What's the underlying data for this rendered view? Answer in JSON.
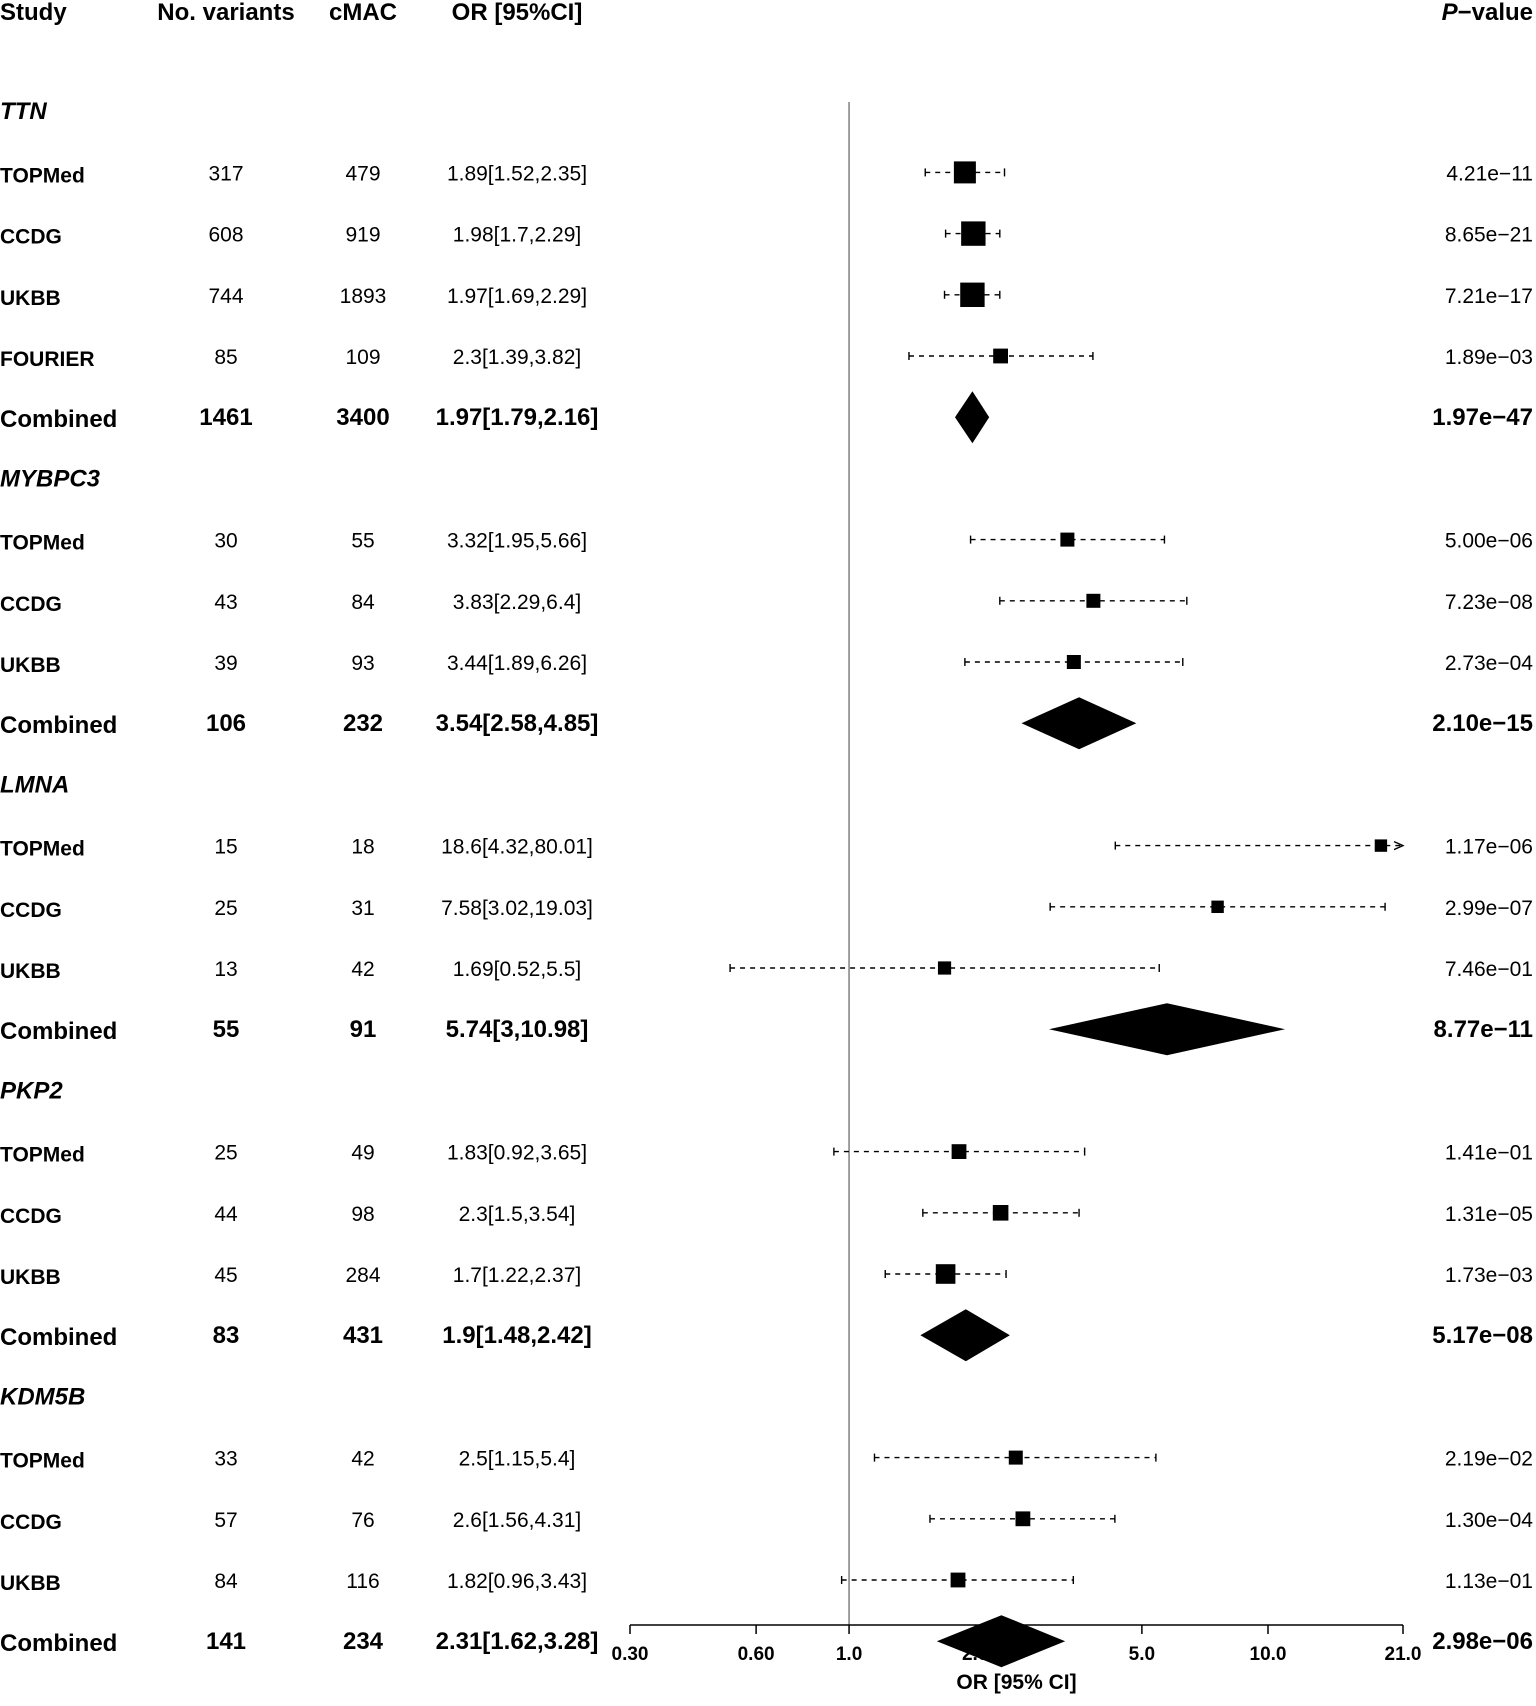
{
  "headers": {
    "study": "Study",
    "variants": "No. variants",
    "cmac": "cMAC",
    "or": "OR [95%CI]",
    "p_italic": "P",
    "p_rest": "−value"
  },
  "combined_label": "Combined",
  "colors": {
    "foreground": "#000000",
    "reference_line": "#808080",
    "background": "#ffffff"
  },
  "chart_data": {
    "type": "forest",
    "x_scale": "log",
    "x_label": "OR [95% CI]",
    "x_ticks": [
      {
        "value": 0.3,
        "label": "0.30"
      },
      {
        "value": 0.6,
        "label": "0.60"
      },
      {
        "value": 1.0,
        "label": "1.0"
      },
      {
        "value": 2.0,
        "label": "2.0"
      },
      {
        "value": 5.0,
        "label": "5.0"
      },
      {
        "value": 10.0,
        "label": "10.0"
      },
      {
        "value": 21.0,
        "label": "21.0"
      }
    ],
    "xlim": [
      0.3,
      21.0
    ],
    "reference_line": 1.0,
    "genes": [
      {
        "name": "TTN",
        "studies": [
          {
            "study": "TOPMed",
            "variants": "317",
            "cmac": "479",
            "or_text": "1.89[1.52,2.35]",
            "or": 1.89,
            "lo": 1.52,
            "hi": 2.35,
            "p": "4.21e−11",
            "weight": 1.0
          },
          {
            "study": "CCDG",
            "variants": "608",
            "cmac": "919",
            "or_text": "1.98[1.7,2.29]",
            "or": 1.98,
            "lo": 1.7,
            "hi": 2.29,
            "p": "8.65e−21",
            "weight": 1.15
          },
          {
            "study": "UKBB",
            "variants": "744",
            "cmac": "1893",
            "or_text": "1.97[1.69,2.29]",
            "or": 1.97,
            "lo": 1.69,
            "hi": 2.29,
            "p": "7.21e−17",
            "weight": 1.15
          },
          {
            "study": "FOURIER",
            "variants": "85",
            "cmac": "109",
            "or_text": "2.3[1.39,3.82]",
            "or": 2.3,
            "lo": 1.39,
            "hi": 3.82,
            "p": "1.89e−03",
            "weight": 0.55
          }
        ],
        "combined": {
          "variants": "1461",
          "cmac": "3400",
          "or_text": "1.97[1.79,2.16]",
          "or": 1.97,
          "lo": 1.79,
          "hi": 2.16,
          "p": "1.97e−47"
        }
      },
      {
        "name": "MYBPC3",
        "studies": [
          {
            "study": "TOPMed",
            "variants": "30",
            "cmac": "55",
            "or_text": "3.32[1.95,5.66]",
            "or": 3.32,
            "lo": 1.95,
            "hi": 5.66,
            "p": "5.00e−06",
            "weight": 0.5
          },
          {
            "study": "CCDG",
            "variants": "43",
            "cmac": "84",
            "or_text": "3.83[2.29,6.4]",
            "or": 3.83,
            "lo": 2.29,
            "hi": 6.4,
            "p": "7.23e−08",
            "weight": 0.5
          },
          {
            "study": "UKBB",
            "variants": "39",
            "cmac": "93",
            "or_text": "3.44[1.89,6.26]",
            "or": 3.44,
            "lo": 1.89,
            "hi": 6.26,
            "p": "2.73e−04",
            "weight": 0.5
          }
        ],
        "combined": {
          "variants": "106",
          "cmac": "232",
          "or_text": "3.54[2.58,4.85]",
          "or": 3.54,
          "lo": 2.58,
          "hi": 4.85,
          "p": "2.10e−15"
        }
      },
      {
        "name": "LMNA",
        "studies": [
          {
            "study": "TOPMed",
            "variants": "15",
            "cmac": "18",
            "or_text": "18.6[4.32,80.01]",
            "or": 18.6,
            "lo": 4.32,
            "hi": 80.01,
            "p": "1.17e−06",
            "weight": 0.4
          },
          {
            "study": "CCDG",
            "variants": "25",
            "cmac": "31",
            "or_text": "7.58[3.02,19.03]",
            "or": 7.58,
            "lo": 3.02,
            "hi": 19.03,
            "p": "2.99e−07",
            "weight": 0.4
          },
          {
            "study": "UKBB",
            "variants": "13",
            "cmac": "42",
            "or_text": "1.69[0.52,5.5]",
            "or": 1.69,
            "lo": 0.52,
            "hi": 5.5,
            "p": "7.46e−01",
            "weight": 0.45
          }
        ],
        "combined": {
          "variants": "55",
          "cmac": "91",
          "or_text": "5.74[3,10.98]",
          "or": 5.74,
          "lo": 3.0,
          "hi": 10.98,
          "p": "8.77e−11"
        }
      },
      {
        "name": "PKP2",
        "studies": [
          {
            "study": "TOPMed",
            "variants": "25",
            "cmac": "49",
            "or_text": "1.83[0.92,3.65]",
            "or": 1.83,
            "lo": 0.92,
            "hi": 3.65,
            "p": "1.41e−01",
            "weight": 0.55
          },
          {
            "study": "CCDG",
            "variants": "44",
            "cmac": "98",
            "or_text": "2.3[1.5,3.54]",
            "or": 2.3,
            "lo": 1.5,
            "hi": 3.54,
            "p": "1.31e−05",
            "weight": 0.6
          },
          {
            "study": "UKBB",
            "variants": "45",
            "cmac": "284",
            "or_text": "1.7[1.22,2.37]",
            "or": 1.7,
            "lo": 1.22,
            "hi": 2.37,
            "p": "1.73e−03",
            "weight": 0.85
          }
        ],
        "combined": {
          "variants": "83",
          "cmac": "431",
          "or_text": "1.9[1.48,2.42]",
          "or": 1.9,
          "lo": 1.48,
          "hi": 2.42,
          "p": "5.17e−08"
        }
      },
      {
        "name": "KDM5B",
        "studies": [
          {
            "study": "TOPMed",
            "variants": "33",
            "cmac": "42",
            "or_text": "2.5[1.15,5.4]",
            "or": 2.5,
            "lo": 1.15,
            "hi": 5.4,
            "p": "2.19e−02",
            "weight": 0.5
          },
          {
            "study": "CCDG",
            "variants": "57",
            "cmac": "76",
            "or_text": "2.6[1.56,4.31]",
            "or": 2.6,
            "lo": 1.56,
            "hi": 4.31,
            "p": "1.30e−04",
            "weight": 0.55
          },
          {
            "study": "UKBB",
            "variants": "84",
            "cmac": "116",
            "or_text": "1.82[0.96,3.43]",
            "or": 1.82,
            "lo": 0.96,
            "hi": 3.43,
            "p": "1.13e−01",
            "weight": 0.55
          }
        ],
        "combined": {
          "variants": "141",
          "cmac": "234",
          "or_text": "2.31[1.62,3.28]",
          "or": 2.31,
          "lo": 1.62,
          "hi": 3.28,
          "p": "2.98e−06"
        }
      }
    ]
  }
}
